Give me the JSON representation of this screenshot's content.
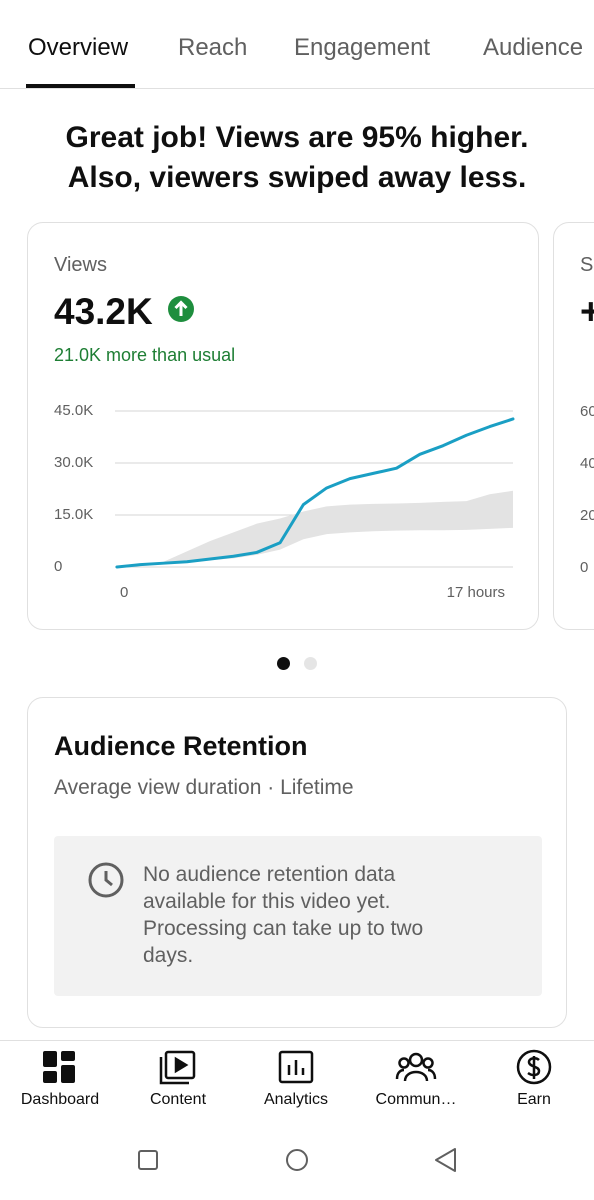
{
  "tabs": [
    "Overview",
    "Reach",
    "Engagement",
    "Audience"
  ],
  "headline": {
    "line1": "Great job! Views are 95% higher.",
    "line2": "Also, viewers swiped away less."
  },
  "views_card": {
    "label": "Views",
    "value": "43.2K",
    "comparison": "21.0K more than usual",
    "chart": {
      "type": "line",
      "x": [
        0,
        1,
        2,
        3,
        4,
        5,
        6,
        7,
        8,
        9,
        10,
        11,
        12,
        13,
        14,
        15,
        16,
        17
      ],
      "xlim": [
        0,
        17
      ],
      "xticks": [
        0,
        {
          "value": 17,
          "label": "17 hours"
        }
      ],
      "ylim": [
        0,
        45000
      ],
      "yticks": [
        0,
        {
          "value": 15000,
          "label": "15.0K"
        },
        {
          "value": 30000,
          "label": "30.0K"
        },
        {
          "value": 45000,
          "label": "45.0K"
        }
      ],
      "grid": true,
      "series": [
        {
          "color": "#1a9fc4",
          "values": [
            0,
            700,
            1100,
            1500,
            2300,
            3100,
            4200,
            7000,
            18000,
            22800,
            25500,
            27000,
            28500,
            32500,
            35000,
            38000,
            40500,
            42700
          ]
        }
      ],
      "band": {
        "color": "#e3e3e3",
        "low": [
          null,
          null,
          1100,
          1500,
          2000,
          2500,
          3500,
          5000,
          8000,
          9500,
          10000,
          10300,
          10500,
          10600,
          10600,
          10700,
          11000,
          11300
        ],
        "high": [
          null,
          null,
          1500,
          4500,
          7500,
          10000,
          12500,
          14000,
          16000,
          17500,
          18000,
          18200,
          18300,
          18500,
          18800,
          19000,
          21000,
          22000
        ]
      }
    }
  },
  "next_card": {
    "label": "S",
    "value": "+",
    "yticks": [
      "60",
      "40",
      "20",
      "0"
    ]
  },
  "retention_card": {
    "title": "Audience Retention",
    "subtitle": "Average view duration · Lifetime",
    "message": "No audience retention data available for this video yet. Processing can take up to two days."
  },
  "bottom_nav": [
    "Dashboard",
    "Content",
    "Analytics",
    "Commun…",
    "Earn"
  ]
}
